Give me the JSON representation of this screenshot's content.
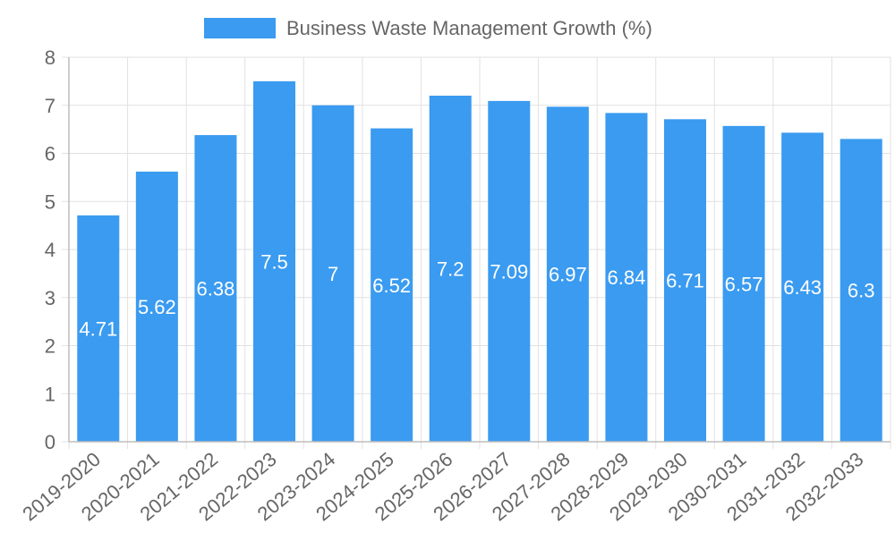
{
  "chart_data": {
    "type": "bar",
    "legend": {
      "label": "Business Waste Management Growth (%)",
      "placement": "top-center"
    },
    "categories": [
      "2019-2020",
      "2020-2021",
      "2021-2022",
      "2022-2023",
      "2023-2024",
      "2024-2025",
      "2025-2026",
      "2026-2027",
      "2027-2028",
      "2028-2029",
      "2029-2030",
      "2030-2031",
      "2031-2032",
      "2032-2033"
    ],
    "values": [
      4.71,
      5.62,
      6.38,
      7.5,
      7,
      6.52,
      7.2,
      7.09,
      6.97,
      6.84,
      6.71,
      6.57,
      6.43,
      6.3
    ],
    "value_labels": [
      "4.71",
      "5.62",
      "6.38",
      "7.5",
      "7",
      "6.52",
      "7.2",
      "7.09",
      "6.97",
      "6.84",
      "6.71",
      "6.57",
      "6.43",
      "6.3"
    ],
    "ylim": [
      0,
      8
    ],
    "yticks": [
      "0",
      "1",
      "2",
      "3",
      "4",
      "5",
      "6",
      "7",
      "8"
    ],
    "grid": true,
    "colors": {
      "bar": "#3a9bf0",
      "grid": "#e1e1e1",
      "axis": "#bdbdbd",
      "text": "#666666",
      "label": "#ffffff"
    }
  }
}
